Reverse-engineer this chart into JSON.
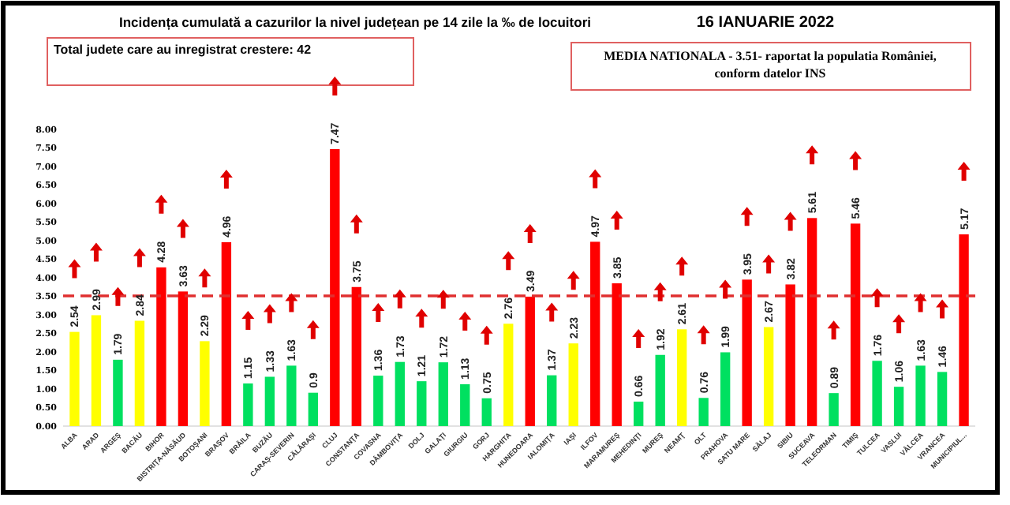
{
  "chart_data": {
    "type": "bar",
    "title": "Incidența cumulată a cazurilor la nivel județean pe 14 zile la ‰ de locuitori",
    "subtitle": "16 IANUARIE 2022",
    "annotations": [
      "Total judete care au inregistrat crestere: 42",
      "MEDIA NATIONALA - 3.51-  raportat la populatia României, conform datelor INS"
    ],
    "categories": [
      "ALBA",
      "ARAD",
      "ARGEŞ",
      "BACĂU",
      "BIHOR",
      "BISTRIŢA-NĂSĂUD",
      "BOTOŞANI",
      "BRAŞOV",
      "BRĂILA",
      "BUZĂU",
      "CARAŞ-SEVERIN",
      "CĂLĂRAŞI",
      "CLUJ",
      "CONSTANŢA",
      "COVASNA",
      "DÂMBOVIŢA",
      "DOLJ",
      "GALAŢI",
      "GIURGIU",
      "GORJ",
      "HARGHITA",
      "HUNEDOARA",
      "IALOMIŢA",
      "IAŞI",
      "ILFOV",
      "MARAMUREŞ",
      "MEHEDINŢI",
      "MUREŞ",
      "NEAMŢ",
      "OLT",
      "PRAHOVA",
      "SATU MARE",
      "SĂLAJ",
      "SIBIU",
      "SUCEAVA",
      "TELEORMAN",
      "TIMIŞ",
      "TULCEA",
      "VASLUI",
      "VÂLCEA",
      "VRANCEA",
      "MUNICIPIUL..."
    ],
    "values": [
      2.54,
      2.99,
      1.79,
      2.84,
      4.28,
      3.63,
      2.29,
      4.96,
      1.15,
      1.33,
      1.63,
      0.9,
      7.47,
      3.75,
      1.36,
      1.73,
      1.21,
      1.72,
      1.13,
      0.75,
      2.76,
      3.49,
      1.37,
      2.23,
      4.97,
      3.85,
      0.66,
      1.92,
      2.61,
      0.76,
      1.99,
      3.95,
      2.67,
      3.82,
      5.61,
      0.89,
      5.46,
      1.76,
      1.06,
      1.63,
      1.46,
      5.17
    ],
    "colors": [
      "#ffff00",
      "#ffff00",
      "#00e060",
      "#ffff00",
      "#ff0000",
      "#ff0000",
      "#ffff00",
      "#ff0000",
      "#00e060",
      "#00e060",
      "#00e060",
      "#00e060",
      "#ff0000",
      "#ff0000",
      "#00e060",
      "#00e060",
      "#00e060",
      "#00e060",
      "#00e060",
      "#00e060",
      "#ffff00",
      "#ff0000",
      "#00e060",
      "#ffff00",
      "#ff0000",
      "#ff0000",
      "#00e060",
      "#00e060",
      "#ffff00",
      "#00e060",
      "#00e060",
      "#ff0000",
      "#ffff00",
      "#ff0000",
      "#ff0000",
      "#00e060",
      "#ff0000",
      "#00e060",
      "#00e060",
      "#00e060",
      "#00e060",
      "#ff0000"
    ],
    "data_labels": true,
    "ylim": [
      0,
      8
    ],
    "yticks": [
      {
        "value": 0,
        "label": "0.00"
      },
      {
        "value": 0.5,
        "label": "0.50"
      },
      {
        "value": 1,
        "label": "1.00"
      },
      {
        "value": 1.5,
        "label": "1.50"
      },
      {
        "value": 2,
        "label": "2.00"
      },
      {
        "value": 2.5,
        "label": "2.50"
      },
      {
        "value": 3,
        "label": "3.00"
      },
      {
        "value": 3.5,
        "label": "3.50"
      },
      {
        "value": 4,
        "label": "4.00"
      },
      {
        "value": 4.5,
        "label": "4.50"
      },
      {
        "value": 5,
        "label": "5.00"
      },
      {
        "value": 5.5,
        "label": "5.50"
      },
      {
        "value": 6,
        "label": "6.00"
      },
      {
        "value": 6.5,
        "label": "6.50"
      },
      {
        "value": 7,
        "label": "7.00"
      },
      {
        "value": 7.5,
        "label": "7.50"
      },
      {
        "value": 8,
        "label": "8.00"
      }
    ],
    "ref_lines": [
      {
        "axis": "y",
        "value": 3.51,
        "color": "#e03030",
        "line_style": "dashed"
      }
    ],
    "grid": false
  }
}
